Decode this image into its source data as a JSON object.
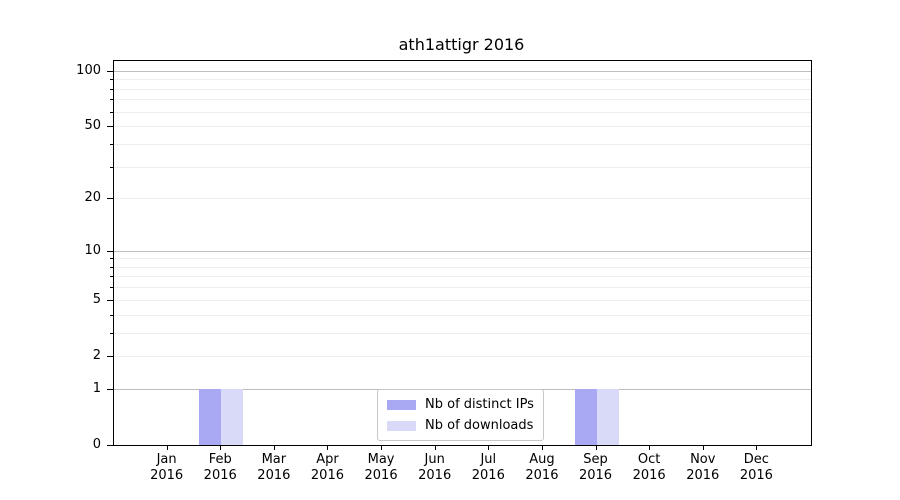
{
  "chart_data": {
    "type": "bar",
    "title": "ath1attigr 2016",
    "xlabel": "",
    "ylabel": "",
    "x_tick_year": "2016",
    "categories": [
      "Jan",
      "Feb",
      "Mar",
      "Apr",
      "May",
      "Jun",
      "Jul",
      "Aug",
      "Sep",
      "Oct",
      "Nov",
      "Dec"
    ],
    "series": [
      {
        "name": "Nb of distinct IPs",
        "color": "#a9a9f3",
        "values": [
          0,
          1,
          0,
          0,
          0,
          0,
          0,
          0,
          1,
          0,
          0,
          0
        ]
      },
      {
        "name": "Nb of downloads",
        "color": "#d9d9f8",
        "values": [
          0,
          1,
          0,
          0,
          0,
          0,
          0,
          0,
          1,
          0,
          0,
          0
        ]
      }
    ],
    "yscale": "log1p",
    "ylim": [
      0,
      113
    ],
    "y_axis": {
      "labeled_ticks": [
        0,
        1,
        2,
        5,
        10,
        20,
        50,
        100
      ],
      "major_gridlines": [
        1,
        10,
        100
      ],
      "minor_gridlines": [
        2,
        3,
        4,
        5,
        6,
        7,
        8,
        9,
        20,
        30,
        40,
        50,
        60,
        70,
        80,
        90
      ]
    },
    "grid": true,
    "legend": {
      "position": "lower center",
      "entries": [
        "Nb of distinct IPs",
        "Nb of downloads"
      ]
    }
  },
  "style": {
    "background": "#ffffff",
    "spine_color": "#000000",
    "major_grid_color": "#bdbdbd",
    "minor_grid_color": "#ededed",
    "text_color": "#000000"
  }
}
